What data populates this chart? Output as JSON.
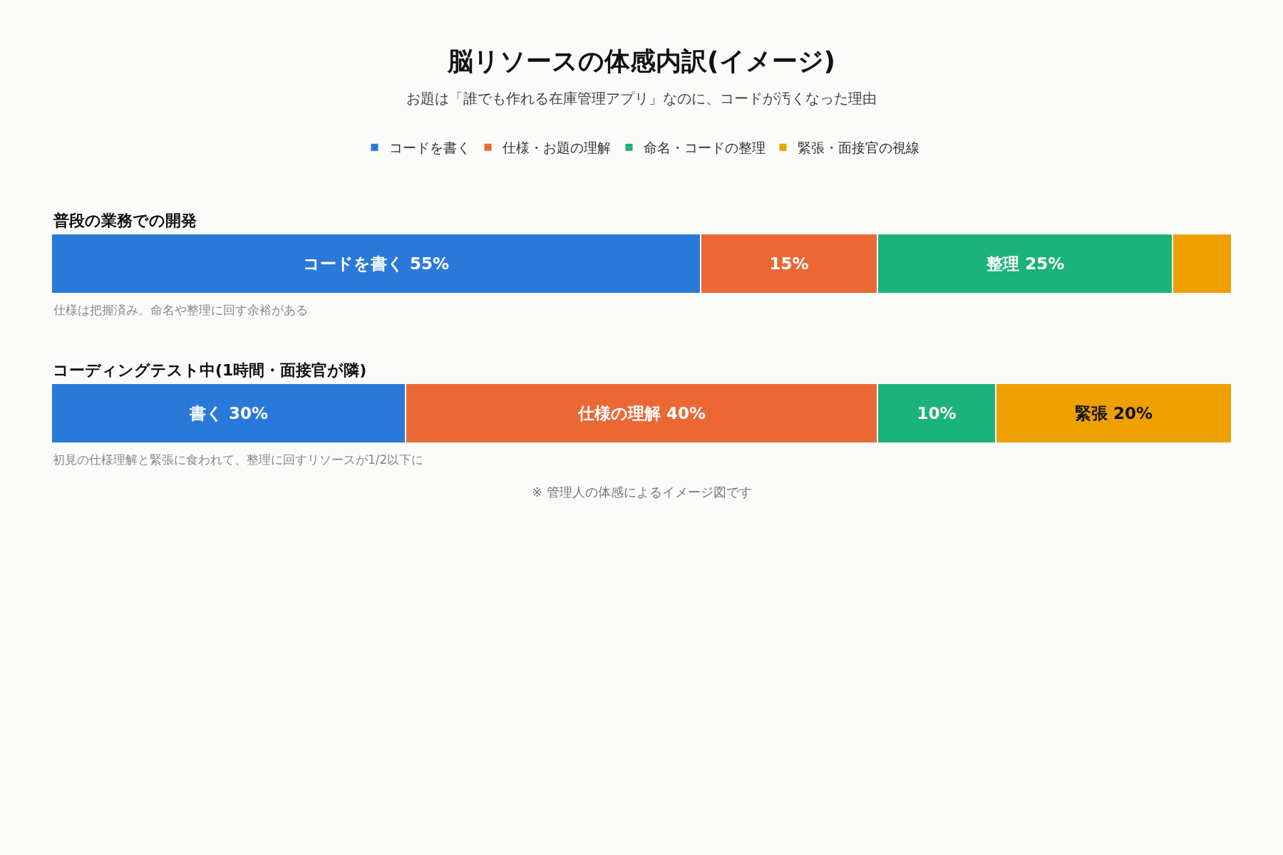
{
  "chart_data": {
    "type": "bar",
    "orientation": "horizontal",
    "stacked": true,
    "title": "脳リソースの体感内訳(イメージ)",
    "subtitle": "お題は「誰でも作れる在庫管理アプリ」なのに、コードが汚くなった理由",
    "categories": [
      "普段の業務での開発",
      "コーディングテスト中(1時間・面接官が隣)"
    ],
    "series": [
      {
        "name": "コードを書く",
        "color": "#2979d9",
        "values": [
          55,
          30
        ],
        "value_labels": [
          "コードを書く 55%",
          "書く 30%"
        ]
      },
      {
        "name": "仕様・お題の理解",
        "color": "#eb6835",
        "values": [
          15,
          40
        ],
        "value_labels": [
          "15%",
          "仕様の理解 40%"
        ]
      },
      {
        "name": "命名・コードの整理",
        "color": "#1cb27b",
        "values": [
          25,
          10
        ],
        "value_labels": [
          "整理 25%",
          "10%"
        ]
      },
      {
        "name": "緊張・面接官の視線",
        "color": "#eda000",
        "values": [
          5,
          20
        ],
        "value_labels": [
          null,
          "緊張 20%"
        ]
      }
    ],
    "annotations": [
      "仕様は把握済み。命名や整理に回す余裕がある",
      "初見の仕様理解と緊張に食われて、整理に回すリソースが1/2以下に",
      "※ 管理人の体感によるイメージ図です"
    ],
    "legend": "top"
  }
}
